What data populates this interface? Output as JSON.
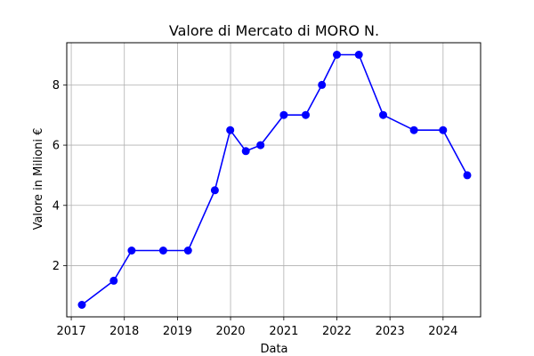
{
  "chart_data": {
    "type": "line",
    "title": "Valore di Mercato di MORO N.",
    "xlabel": "Data",
    "ylabel": "Valore in Milioni €",
    "x_ticks": [
      "2017",
      "2018",
      "2019",
      "2020",
      "2021",
      "2022",
      "2023",
      "2024"
    ],
    "y_ticks": [
      "2",
      "4",
      "6",
      "8"
    ],
    "xlim": [
      "2016-12-01",
      "2024-09-15"
    ],
    "ylim": [
      0.3,
      9.4
    ],
    "grid": true,
    "series": [
      {
        "color": "#0000ff",
        "marker": "circle",
        "points": [
          {
            "date": "2017-03-15",
            "value": 0.7
          },
          {
            "date": "2017-10-20",
            "value": 1.5
          },
          {
            "date": "2018-02-20",
            "value": 2.5
          },
          {
            "date": "2018-09-25",
            "value": 2.5
          },
          {
            "date": "2019-03-15",
            "value": 2.5
          },
          {
            "date": "2019-09-15",
            "value": 4.5
          },
          {
            "date": "2019-12-30",
            "value": 6.5
          },
          {
            "date": "2020-04-15",
            "value": 5.8
          },
          {
            "date": "2020-07-25",
            "value": 6.0
          },
          {
            "date": "2021-01-01",
            "value": 7.0
          },
          {
            "date": "2021-06-01",
            "value": 7.0
          },
          {
            "date": "2021-09-20",
            "value": 8.0
          },
          {
            "date": "2022-01-01",
            "value": 9.0
          },
          {
            "date": "2022-06-01",
            "value": 9.0
          },
          {
            "date": "2022-11-15",
            "value": 7.0
          },
          {
            "date": "2023-06-15",
            "value": 6.5
          },
          {
            "date": "2024-01-01",
            "value": 6.5
          },
          {
            "date": "2024-06-15",
            "value": 5.0
          }
        ]
      }
    ]
  }
}
